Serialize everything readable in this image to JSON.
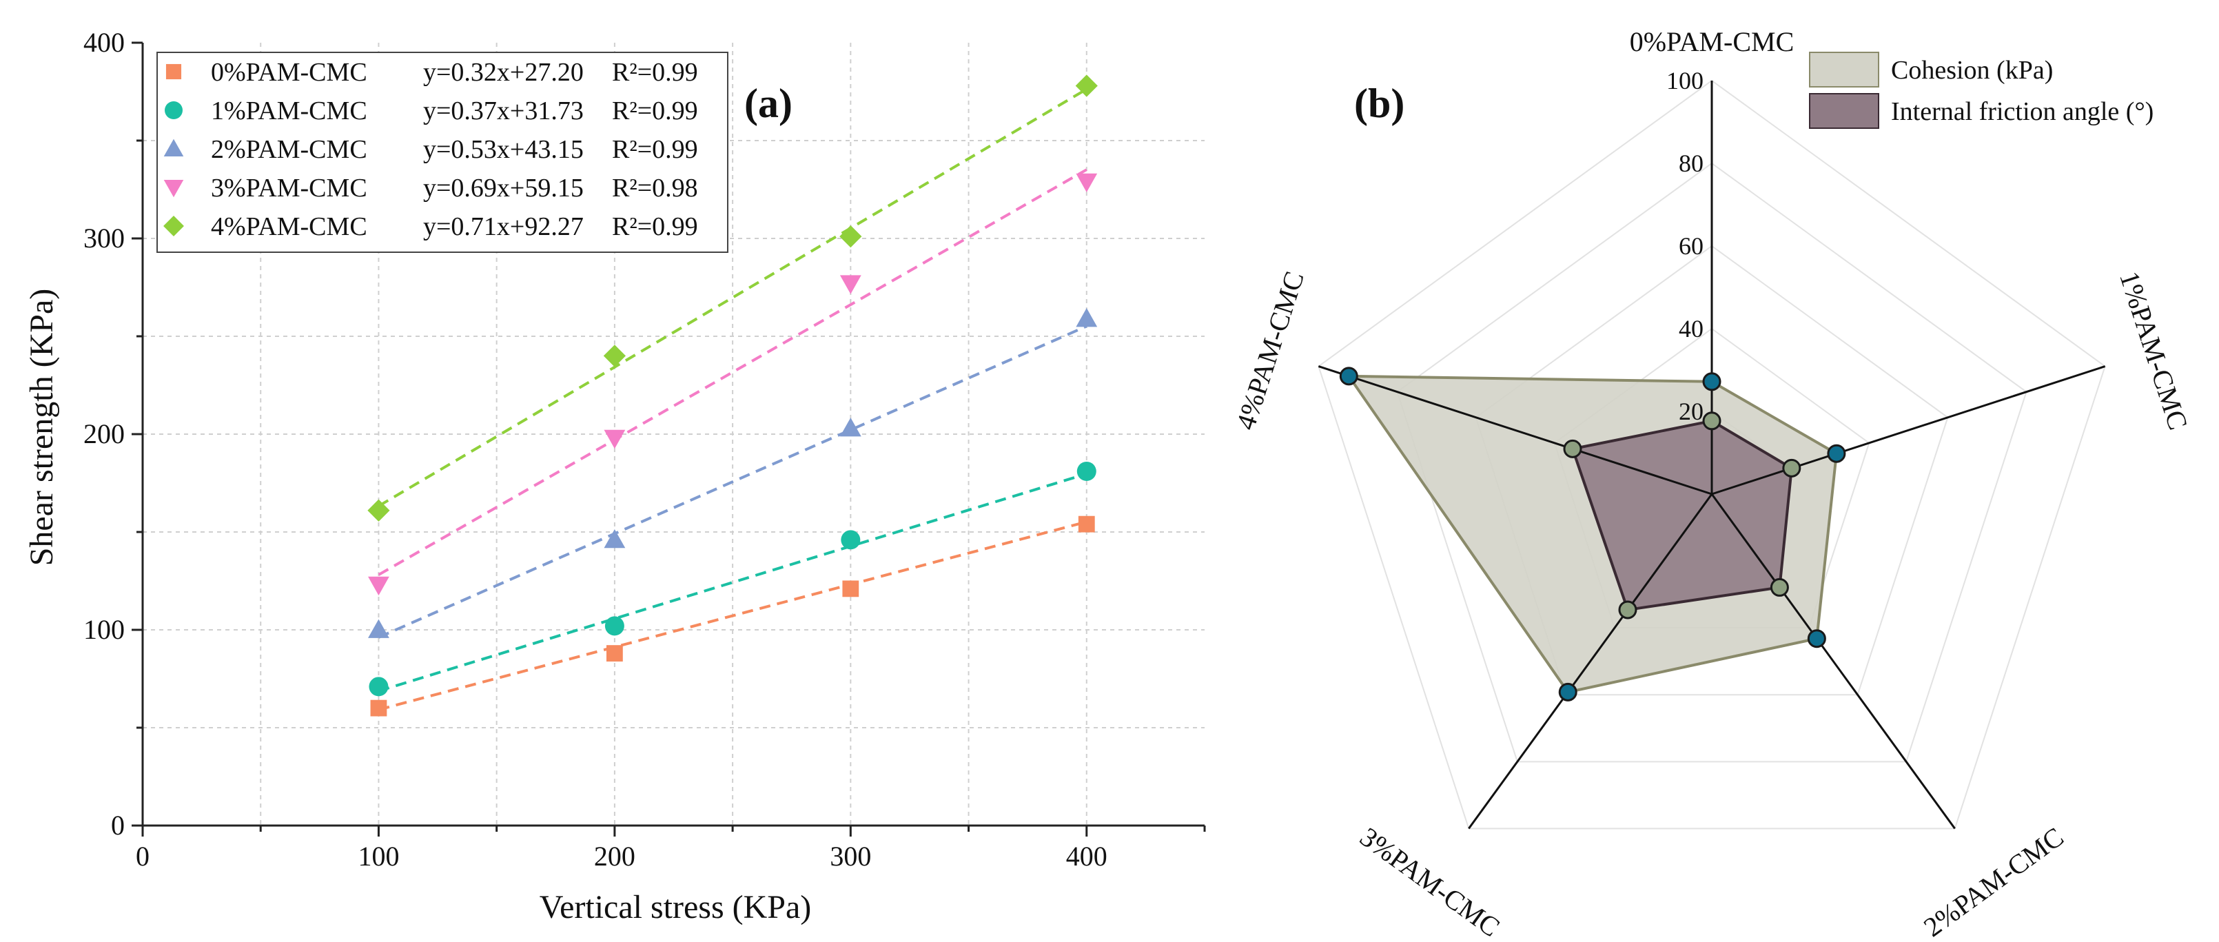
{
  "colors": {
    "series": [
      "#f68a5e",
      "#1bbfa3",
      "#7f9bd0",
      "#f47cc6",
      "#8fd03a"
    ],
    "cohesion_fill": "#d3d3c8",
    "cohesion_stroke": "#8a8a6a",
    "friction_fill": "#8f7b85",
    "friction_stroke": "#3a2a33",
    "cohesion_marker": "#0f6f8f",
    "friction_marker": "#8d9f80"
  },
  "chart_data": [
    {
      "type": "scatter",
      "panel_label": "(a)",
      "xlabel": "Vertical stress (KPa)",
      "ylabel": "Shear strength (KPa)",
      "xlim": [
        0,
        450
      ],
      "ylim": [
        0,
        400
      ],
      "xticks": [
        0,
        100,
        200,
        300,
        400
      ],
      "yticks": [
        0,
        100,
        200,
        300,
        400
      ],
      "grid": true,
      "legend_position": "top-left",
      "x": [
        100,
        200,
        300,
        400
      ],
      "series": [
        {
          "name": "0%PAM-CMC",
          "marker": "square",
          "values": [
            60,
            88,
            121,
            154
          ],
          "fit": {
            "slope": 0.32,
            "intercept": 27.2,
            "label": "y=0.32x+27.20",
            "r2_label": "R²=0.99"
          }
        },
        {
          "name": "1%PAM-CMC",
          "marker": "circle",
          "values": [
            71,
            102,
            146,
            181
          ],
          "fit": {
            "slope": 0.37,
            "intercept": 31.73,
            "label": "y=0.37x+31.73",
            "r2_label": "R²=0.99"
          }
        },
        {
          "name": "2%PAM-CMC",
          "marker": "triangle-up",
          "values": [
            100,
            146,
            203,
            259
          ],
          "fit": {
            "slope": 0.53,
            "intercept": 43.15,
            "label": "y=0.53x+43.15",
            "r2_label": "R²=0.99"
          }
        },
        {
          "name": "3%PAM-CMC",
          "marker": "triangle-down",
          "values": [
            123,
            198,
            277,
            329
          ],
          "fit": {
            "slope": 0.69,
            "intercept": 59.15,
            "label": "y=0.69x+59.15",
            "r2_label": "R²=0.98"
          }
        },
        {
          "name": "4%PAM-CMC",
          "marker": "diamond",
          "values": [
            161,
            240,
            301,
            378
          ],
          "fit": {
            "slope": 0.71,
            "intercept": 92.27,
            "label": "y=0.71x+92.27",
            "r2_label": "R²=0.99"
          }
        }
      ]
    },
    {
      "type": "radar",
      "panel_label": "(b)",
      "axes": [
        "0%PAM-CMC",
        "1%PAM-CMC",
        "2%PAM-CMC",
        "3%PAM-CMC",
        "4%PAM-CMC"
      ],
      "rlim": [
        0,
        100
      ],
      "rticks": [
        20,
        40,
        60,
        80,
        100
      ],
      "legend_position": "top-right",
      "series": [
        {
          "name": "Cohesion (kPa)",
          "values": [
            27.2,
            31.7,
            43.2,
            59.2,
            92.3
          ]
        },
        {
          "name": "Internal friction angle (°)",
          "values": [
            17.7,
            20.3,
            27.9,
            34.6,
            35.4
          ]
        }
      ]
    }
  ]
}
